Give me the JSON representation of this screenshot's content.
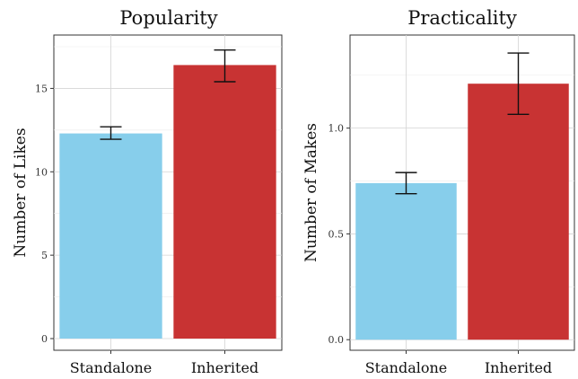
{
  "chart_data": [
    {
      "type": "bar",
      "title": "Popularity",
      "ylabel": "Number of Likes",
      "xlabel": "",
      "categories": [
        "Standalone",
        "Inherited"
      ],
      "values": [
        12.3,
        16.4
      ],
      "error_low": [
        11.95,
        15.4
      ],
      "error_high": [
        12.7,
        17.3
      ],
      "ylim": [
        -0.7,
        18.2
      ],
      "yticks": [
        0,
        5,
        10,
        15
      ],
      "ytick_labels": [
        "0",
        "5",
        "10",
        "15"
      ],
      "colors": [
        "#87CEEB",
        "#C83333"
      ],
      "grid": true
    },
    {
      "type": "bar",
      "title": "Practicality",
      "ylabel": "Number of Makes",
      "xlabel": "",
      "categories": [
        "Standalone",
        "Inherited"
      ],
      "values": [
        0.74,
        1.21
      ],
      "error_low": [
        0.69,
        1.065
      ],
      "error_high": [
        0.79,
        1.355
      ],
      "ylim": [
        -0.05,
        1.44
      ],
      "yticks": [
        0.0,
        0.5,
        1.0
      ],
      "ytick_labels": [
        "0.0",
        "0.5",
        "1.0"
      ],
      "colors": [
        "#87CEEB",
        "#C83333"
      ],
      "grid": true
    }
  ]
}
